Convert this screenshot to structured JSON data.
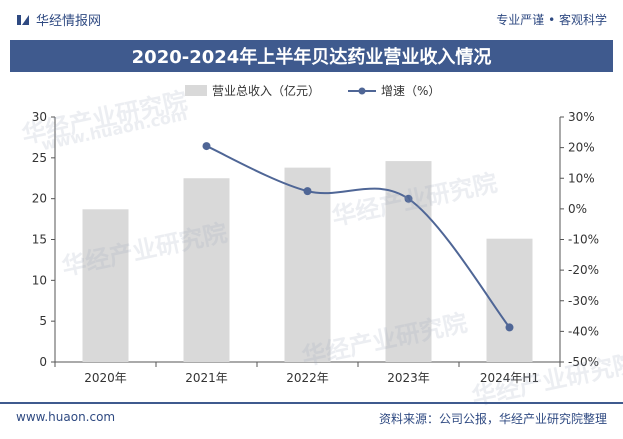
{
  "header": {
    "brand": "华经情报网",
    "tagline": "专业严谨 • 客观科学"
  },
  "title": "2020-2024年上半年贝达药业营业收入情况",
  "watermarks": [
    "华经产业研究院",
    "www.huaon.com"
  ],
  "colors": {
    "bar": "#d9d9d9",
    "line": "#4f6696",
    "title_bg": "#3f5a8e",
    "brand": "#2f4a82"
  },
  "chart_data": {
    "type": "bar",
    "categories": [
      "2020年",
      "2021年",
      "2022年",
      "2023年",
      "2024年H1"
    ],
    "series": [
      {
        "name": "营业总收入（亿元）",
        "type": "bar",
        "axis": "left",
        "values": [
          18.7,
          22.5,
          23.8,
          24.6,
          15.1
        ]
      },
      {
        "name": "增速（%）",
        "type": "line",
        "axis": "right",
        "values": [
          null,
          20.5,
          5.8,
          3.3,
          -38.7
        ]
      }
    ],
    "y_left": {
      "min": 0,
      "max": 30,
      "ticks": [
        0,
        5,
        10,
        15,
        20,
        25,
        30
      ]
    },
    "y_right": {
      "min": -50,
      "max": 30,
      "ticks": [
        "30%",
        "20%",
        "10%",
        "0%",
        "-10%",
        "-20%",
        "-30%",
        "-40%",
        "-50%"
      ]
    },
    "legend": "top-center",
    "grid": false
  },
  "footer": {
    "site": "www.huaon.com",
    "source": "资料来源：公司公报，华经产业研究院整理"
  }
}
